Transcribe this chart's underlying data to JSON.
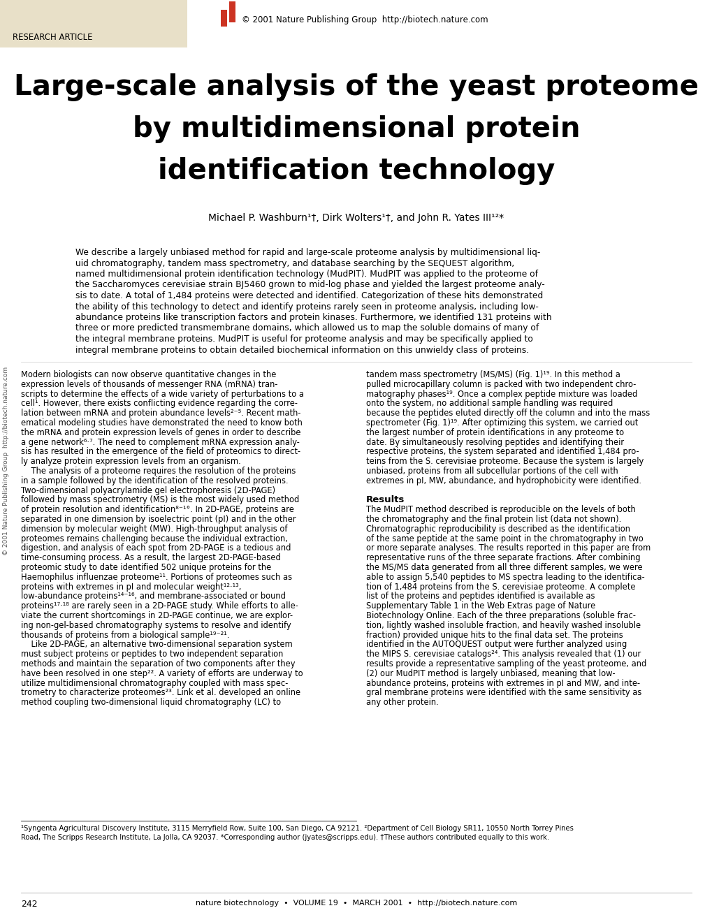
{
  "bg_color": "#ffffff",
  "header_bg": "#e8e0c8",
  "header_text": "RESEARCH ARTICLE",
  "copyright_text": "© 2001 Nature Publishing Group  http://biotech.nature.com",
  "logo_color": "#cc3322",
  "title_line1": "Large-scale analysis of the yeast proteome",
  "title_line2": "by multidimensional protein",
  "title_line3": "identification technology",
  "authors": "Michael P. Washburn¹†, Dirk Wolters¹†, and John R. Yates III¹²*",
  "abstract_lines": [
    "We describe a largely unbiased method for rapid and large-scale proteome analysis by multidimensional liq-",
    "uid chromatography, tandem mass spectrometry, and database searching by the SEQUEST algorithm,",
    "named multidimensional protein identification technology (MudPIT). MudPIT was applied to the proteome of",
    "the Saccharomyces cerevisiae strain BJ5460 grown to mid-log phase and yielded the largest proteome analy-",
    "sis to date. A total of 1,484 proteins were detected and identified. Categorization of these hits demonstrated",
    "the ability of this technology to detect and identify proteins rarely seen in proteome analysis, including low-",
    "abundance proteins like transcription factors and protein kinases. Furthermore, we identified 131 proteins with",
    "three or more predicted transmembrane domains, which allowed us to map the soluble domains of many of",
    "the integral membrane proteins. MudPIT is useful for proteome analysis and may be specifically applied to",
    "integral membrane proteins to obtain detailed biochemical information on this unwieldy class of proteins."
  ],
  "col1_lines": [
    "Modern biologists can now observe quantitative changes in the",
    "expression levels of thousands of messenger RNA (mRNA) tran-",
    "scripts to determine the effects of a wide variety of perturbations to a",
    "cell¹. However, there exists conflicting evidence regarding the corre-",
    "lation between mRNA and protein abundance levels²⁻⁵. Recent math-",
    "ematical modeling studies have demonstrated the need to know both",
    "the mRNA and protein expression levels of genes in order to describe",
    "a gene network⁶·⁷. The need to complement mRNA expression analy-",
    "sis has resulted in the emergence of the field of proteomics to direct-",
    "ly analyze protein expression levels from an organism.",
    "    The analysis of a proteome requires the resolution of the proteins",
    "in a sample followed by the identification of the resolved proteins.",
    "Two-dimensional polyacrylamide gel electrophoresis (2D-PAGE)",
    "followed by mass spectrometry (MS) is the most widely used method",
    "of protein resolution and identification⁸⁻¹°. In 2D-PAGE, proteins are",
    "separated in one dimension by isoelectric point (pI) and in the other",
    "dimension by molecular weight (MW). High-throughput analysis of",
    "proteomes remains challenging because the individual extraction,",
    "digestion, and analysis of each spot from 2D-PAGE is a tedious and",
    "time-consuming process. As a result, the largest 2D-PAGE-based",
    "proteomic study to date identified 502 unique proteins for the",
    "Haemophilus influenzae proteome¹¹. Portions of proteomes such as",
    "proteins with extremes in pI and molecular weight¹²·¹³,",
    "low-abundance proteins¹⁴⁻¹⁶, and membrane-associated or bound",
    "proteins¹⁷·¹⁸ are rarely seen in a 2D-PAGE study. While efforts to alle-",
    "viate the current shortcomings in 2D-PAGE continue, we are explor-",
    "ing non-gel-based chromatography systems to resolve and identify",
    "thousands of proteins from a biological sample¹⁹⁻²¹.",
    "    Like 2D-PAGE, an alternative two-dimensional separation system",
    "must subject proteins or peptides to two independent separation",
    "methods and maintain the separation of two components after they",
    "have been resolved in one step²². A variety of efforts are underway to",
    "utilize multidimensional chromatography coupled with mass spec-",
    "trometry to characterize proteomes²³. Link et al. developed an online",
    "method coupling two-dimensional liquid chromatography (LC) to"
  ],
  "col2_lines": [
    "tandem mass spectrometry (MS/MS) (Fig. 1)¹⁹. In this method a",
    "pulled microcapillary column is packed with two independent chro-",
    "matography phases¹⁹. Once a complex peptide mixture was loaded",
    "onto the system, no additional sample handling was required",
    "because the peptides eluted directly off the column and into the mass",
    "spectrometer (Fig. 1)¹⁹. After optimizing this system, we carried out",
    "the largest number of protein identifications in any proteome to",
    "date. By simultaneously resolving peptides and identifying their",
    "respective proteins, the system separated and identified 1,484 pro-",
    "teins from the S. cerevisiae proteome. Because the system is largely",
    "unbiased, proteins from all subcellular portions of the cell with",
    "extremes in pI, MW, abundance, and hydrophobicity were identified.",
    "",
    "Results",
    "The MudPIT method described is reproducible on the levels of both",
    "the chromatography and the final protein list (data not shown).",
    "Chromatographic reproducibility is described as the identification",
    "of the same peptide at the same point in the chromatography in two",
    "or more separate analyses. The results reported in this paper are from",
    "representative runs of the three separate fractions. After combining",
    "the MS/MS data generated from all three different samples, we were",
    "able to assign 5,540 peptides to MS spectra leading to the identifica-",
    "tion of 1,484 proteins from the S. cerevisiae proteome. A complete",
    "list of the proteins and peptides identified is available as",
    "Supplementary Table 1 in the Web Extras page of Nature",
    "Biotechnology Online. Each of the three preparations (soluble frac-",
    "tion, lightly washed insoluble fraction, and heavily washed insoluble",
    "fraction) provided unique hits to the final data set. The proteins",
    "identified in the AUTOQUEST output were further analyzed using",
    "the MIPS S. cerevisiae catalogs²⁴. This analysis revealed that (1) our",
    "results provide a representative sampling of the yeast proteome, and",
    "(2) our MudPIT method is largely unbiased, meaning that low-",
    "abundance proteins, proteins with extremes in pI and MW, and inte-",
    "gral membrane proteins were identified with the same sensitivity as",
    "any other protein."
  ],
  "footnote_lines": [
    "¹Syngenta Agricultural Discovery Institute, 3115 Merryfield Row, Suite 100, San Diego, CA 92121. ²Department of Cell Biology SR11, 10550 North Torrey Pines",
    "Road, The Scripps Research Institute, La Jolla, CA 92037. *Corresponding author (jyates@scripps.edu). †These authors contributed equally to this work."
  ],
  "page_num": "242",
  "footer_text": "nature biotechnology  •  VOLUME 19  •  MARCH 2001  •  http://biotech.nature.com",
  "sideways_text": "© 2001 Nature Publishing Group  http://biotech.nature.com"
}
